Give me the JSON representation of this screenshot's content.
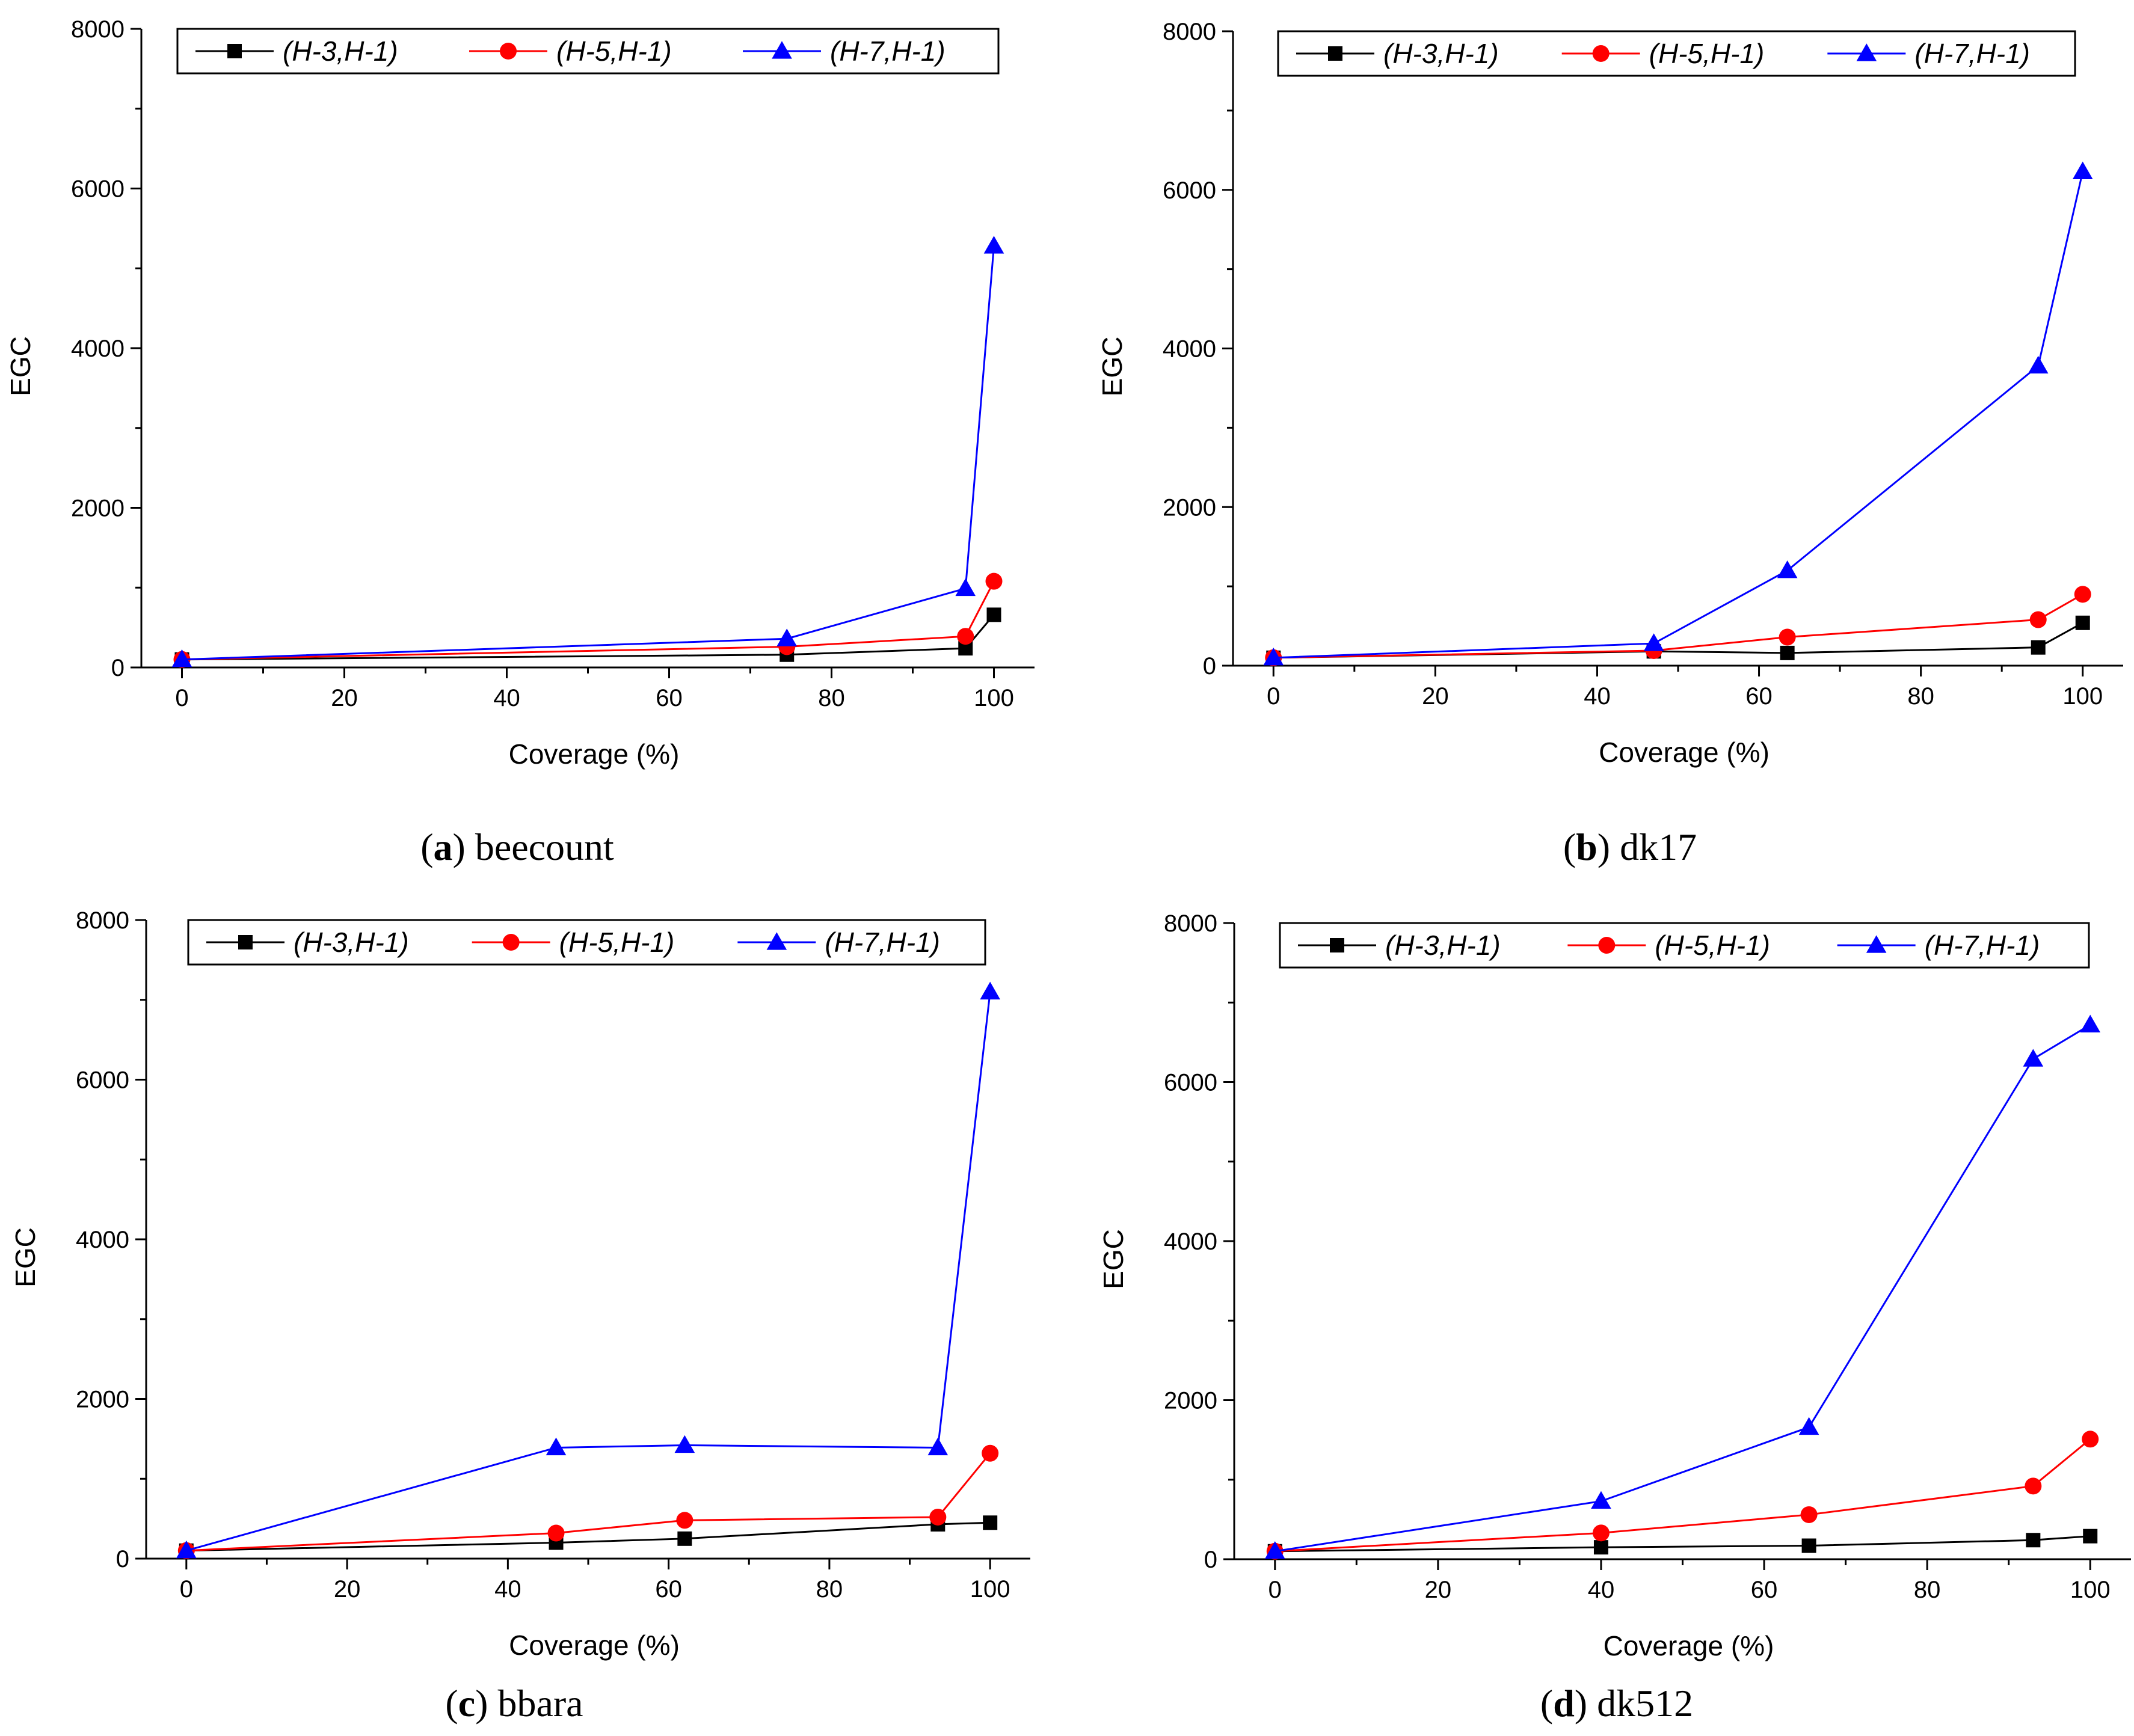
{
  "chart_data": [
    {
      "type": "line",
      "caption": {
        "open": "(",
        "letter": "a",
        "close": ")",
        "name": "beecount"
      },
      "xlabel": "Coverage (%)",
      "ylabel": "EGC",
      "xlim": [
        -5,
        105
      ],
      "ylim": [
        0,
        8000
      ],
      "xticks": [
        0,
        20,
        40,
        60,
        80,
        100
      ],
      "yticks": [
        0,
        2000,
        4000,
        6000,
        8000
      ],
      "legend_position": "top",
      "series": [
        {
          "name": "(H-3,H-1)",
          "color": "#000000",
          "marker": "square",
          "x": [
            0,
            74.5,
            96.5,
            100
          ],
          "y": [
            100,
            160,
            240,
            660
          ]
        },
        {
          "name": "(H-5,H-1)",
          "color": "#ff0000",
          "marker": "circle",
          "x": [
            0,
            74.5,
            96.5,
            100
          ],
          "y": [
            100,
            260,
            390,
            1080
          ]
        },
        {
          "name": "(H-7,H-1)",
          "color": "#0000ff",
          "marker": "triangle",
          "x": [
            0,
            74.5,
            96.5,
            100
          ],
          "y": [
            100,
            360,
            990,
            5280
          ]
        }
      ]
    },
    {
      "type": "line",
      "caption": {
        "open": "(",
        "letter": "b",
        "close": ")",
        "name": "dk17"
      },
      "xlabel": "Coverage (%)",
      "ylabel": "EGC",
      "xlim": [
        -5,
        105
      ],
      "ylim": [
        0,
        8000
      ],
      "xticks": [
        0,
        20,
        40,
        60,
        80,
        100
      ],
      "yticks": [
        0,
        2000,
        4000,
        6000,
        8000
      ],
      "legend_position": "top",
      "series": [
        {
          "name": "(H-3,H-1)",
          "color": "#000000",
          "marker": "square",
          "x": [
            0,
            47,
            63.5,
            94.5,
            100
          ],
          "y": [
            100,
            180,
            160,
            230,
            540
          ]
        },
        {
          "name": "(H-5,H-1)",
          "color": "#ff0000",
          "marker": "circle",
          "x": [
            0,
            47,
            63.5,
            94.5,
            100
          ],
          "y": [
            100,
            190,
            360,
            580,
            900
          ]
        },
        {
          "name": "(H-7,H-1)",
          "color": "#0000ff",
          "marker": "triangle",
          "x": [
            0,
            47,
            63.5,
            94.5,
            100
          ],
          "y": [
            100,
            280,
            1200,
            3780,
            6230
          ]
        }
      ]
    },
    {
      "type": "line",
      "caption": {
        "open": "(",
        "letter": "c",
        "close": ")",
        "name": "bbara"
      },
      "xlabel": "Coverage (%)",
      "ylabel": "EGC",
      "xlim": [
        -5,
        105
      ],
      "ylim": [
        0,
        8000
      ],
      "xticks": [
        0,
        20,
        40,
        60,
        80,
        100
      ],
      "yticks": [
        0,
        2000,
        4000,
        6000,
        8000
      ],
      "legend_position": "top",
      "series": [
        {
          "name": "(H-3,H-1)",
          "color": "#000000",
          "marker": "square",
          "x": [
            0,
            46,
            62,
            93.5,
            100
          ],
          "y": [
            100,
            200,
            250,
            430,
            450
          ]
        },
        {
          "name": "(H-5,H-1)",
          "color": "#ff0000",
          "marker": "circle",
          "x": [
            0,
            46,
            62,
            93.5,
            100
          ],
          "y": [
            100,
            320,
            480,
            520,
            1320
          ]
        },
        {
          "name": "(H-7,H-1)",
          "color": "#0000ff",
          "marker": "triangle",
          "x": [
            0,
            46,
            62,
            93.5,
            100
          ],
          "y": [
            100,
            1390,
            1420,
            1390,
            7100
          ]
        }
      ]
    },
    {
      "type": "line",
      "caption": {
        "open": "(",
        "letter": "d",
        "close": ")",
        "name": "dk512"
      },
      "xlabel": "Coverage (%)",
      "ylabel": "EGC",
      "xlim": [
        -5,
        105
      ],
      "ylim": [
        0,
        8000
      ],
      "xticks": [
        0,
        20,
        40,
        60,
        80,
        100
      ],
      "yticks": [
        0,
        2000,
        4000,
        6000,
        8000
      ],
      "legend_position": "top",
      "series": [
        {
          "name": "(H-3,H-1)",
          "color": "#000000",
          "marker": "square",
          "x": [
            0,
            40,
            65.5,
            93,
            100
          ],
          "y": [
            100,
            150,
            170,
            240,
            290
          ]
        },
        {
          "name": "(H-5,H-1)",
          "color": "#ff0000",
          "marker": "circle",
          "x": [
            0,
            40,
            65.5,
            93,
            100
          ],
          "y": [
            100,
            330,
            560,
            920,
            1510
          ]
        },
        {
          "name": "(H-7,H-1)",
          "color": "#0000ff",
          "marker": "triangle",
          "x": [
            0,
            40,
            65.5,
            93,
            100
          ],
          "y": [
            100,
            730,
            1660,
            6290,
            6720
          ]
        }
      ]
    }
  ]
}
